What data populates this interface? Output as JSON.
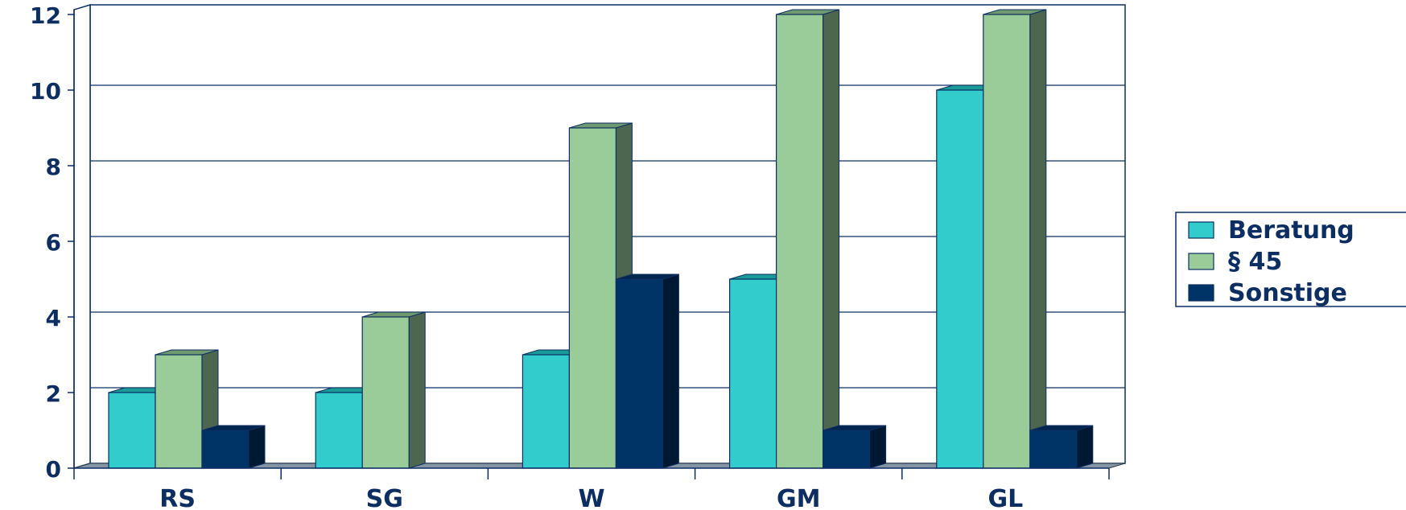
{
  "chart_data": {
    "type": "bar",
    "title": "",
    "xlabel": "",
    "ylabel": "",
    "categories": [
      "RS",
      "SG",
      "W",
      "GM",
      "GL"
    ],
    "series": [
      {
        "name": "Beratung",
        "values": [
          2,
          2,
          3,
          5,
          10
        ],
        "color": "#33cccc",
        "top_color": "#1a9999",
        "side_color": "#1a8080"
      },
      {
        "name": "§ 45",
        "values": [
          3,
          4,
          9,
          12,
          12
        ],
        "color": "#99cc99",
        "top_color": "#6f9a6f",
        "side_color": "#4d6650"
      },
      {
        "name": "Sonstige",
        "values": [
          1,
          0,
          5,
          1,
          1
        ],
        "color": "#003366",
        "top_color": "#002650",
        "side_color": "#001933"
      }
    ],
    "ylim": [
      0,
      12
    ],
    "yticks": [
      "0",
      "2",
      "4",
      "6",
      "8",
      "10",
      "12"
    ],
    "grid": true,
    "legend_position": "right",
    "three_d": true
  }
}
